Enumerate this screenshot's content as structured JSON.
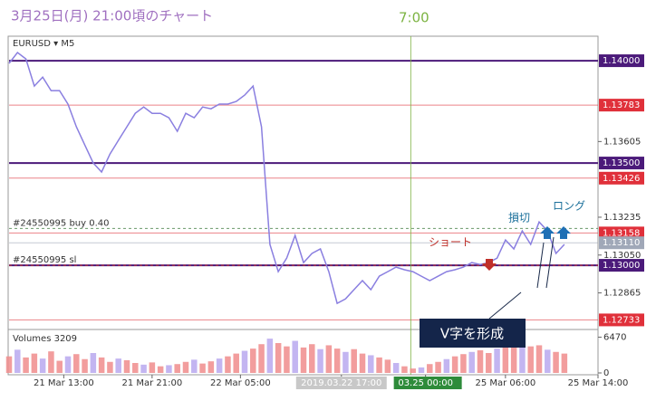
{
  "title": "3月25日(月) 21:00頃のチャート",
  "time_note": "7:00",
  "chart_data": {
    "type": "line",
    "symbol": "EURUSD ▾ M5",
    "color": "#8a7fe0",
    "values": [
      1.13987,
      1.1404,
      1.14009,
      1.13876,
      1.1392,
      1.13854,
      1.13854,
      1.13788,
      1.13677,
      1.13588,
      1.135,
      1.13456,
      1.13544,
      1.13611,
      1.13677,
      1.13743,
      1.13774,
      1.13743,
      1.13743,
      1.13721,
      1.13655,
      1.13743,
      1.13721,
      1.13774,
      1.13765,
      1.13788,
      1.13788,
      1.13801,
      1.13832,
      1.13876,
      1.13677,
      1.13102,
      1.12969,
      1.13035,
      1.13146,
      1.13013,
      1.13058,
      1.1308,
      1.12969,
      1.12814,
      1.12836,
      1.12881,
      1.12925,
      1.12881,
      1.12947,
      1.12969,
      1.12991,
      1.12978,
      1.12969,
      1.12947,
      1.12925,
      1.12947,
      1.12969,
      1.12978,
      1.12991,
      1.13013,
      1.13004,
      1.13013,
      1.13035,
      1.13124,
      1.1308,
      1.13168,
      1.13102,
      1.13212,
      1.13168,
      1.13058,
      1.13102
    ],
    "xlim": [
      0,
      70
    ],
    "xticks": [
      {
        "value": 6.5,
        "label": "21 Mar 13:00"
      },
      {
        "value": 17,
        "label": "21 Mar 21:00"
      },
      {
        "value": 27.5,
        "label": "22 Mar 05:00"
      },
      {
        "value": 39.5,
        "label": "2019.03.22 17:00"
      },
      {
        "value": 49.5,
        "label": "03.25 00:00"
      },
      {
        "value": 59,
        "label": "25 Mar 06:00"
      },
      {
        "value": 70,
        "label": "25 Mar 14:00"
      }
    ],
    "ylim": [
      1.12695,
      1.14111
    ],
    "yticks": [
      1.13605,
      1.13235,
      {
        "value": 1.1305,
        "label": "1.13050"
      },
      1.12865
    ],
    "levels": [
      {
        "value": 1.14,
        "label": "1.14000",
        "color": "#4b1a7a"
      },
      {
        "value": 1.13783,
        "color": "#e0303a"
      },
      {
        "value": 1.135,
        "label": "1.13500",
        "color": "#4b1a7a"
      },
      {
        "value": 1.13426,
        "color": "#e0303a"
      },
      {
        "value": 1.13158,
        "color": "#e0303a"
      },
      {
        "value": 1.1311,
        "label": "1.13110",
        "color": "#a0a8b8"
      },
      {
        "value": 1.13,
        "label": "1.13000",
        "color": "#4b1a7a"
      },
      {
        "value": 1.12733,
        "color": "#e0303a"
      }
    ],
    "orders": [
      {
        "label": "#24550995 buy 0.40",
        "value": 1.1318
      },
      {
        "label": "#24550995 sl",
        "value": 1.13
      }
    ],
    "now_x": 47.75,
    "annotations": {
      "short": "ショート",
      "stop": "損切",
      "long": "ロング",
      "v_shape": "V字を形成"
    },
    "volume": {
      "label": "Volumes 3209",
      "color": "#f08c8c",
      "values": [
        3000,
        4200,
        2800,
        3500,
        2600,
        3900,
        2200,
        3000,
        3400,
        2500,
        3600,
        2800,
        2000,
        2600,
        2300,
        1800,
        1500,
        1900,
        1200,
        1400,
        1600,
        2000,
        2400,
        1700,
        2100,
        2600,
        3000,
        3500,
        4000,
        4400,
        5200,
        6200,
        5400,
        4800,
        5800,
        4600,
        5200,
        4300,
        5000,
        4400,
        3800,
        4300,
        3500,
        3200,
        2800,
        2400,
        1800,
        1200,
        800,
        1000,
        1600,
        2000,
        2500,
        3000,
        3400,
        3800,
        4100,
        3600,
        4400,
        5000,
        4600,
        5400,
        4800,
        5000,
        4200,
        3800,
        3500
      ],
      "ylim": [
        0,
        7200
      ],
      "yticks": [
        6470,
        0
      ]
    }
  }
}
